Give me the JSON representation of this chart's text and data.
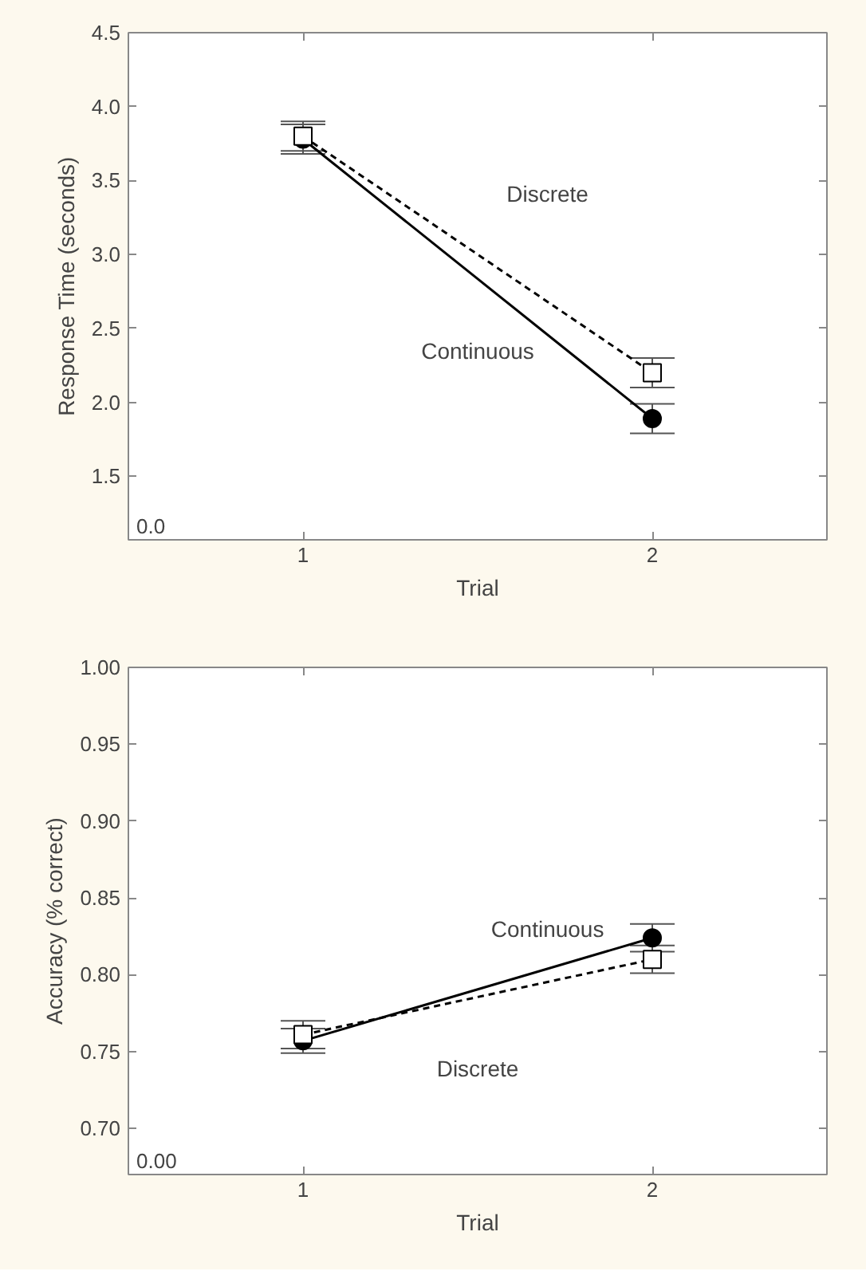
{
  "chart_data": [
    {
      "type": "line",
      "xlabel": "Trial",
      "ylabel": "Response Time (seconds)",
      "categories": [
        "1",
        "2"
      ],
      "ylim": [
        1.07,
        4.5
      ],
      "annotations": [
        "0.0"
      ],
      "yticks": [
        1.5,
        {
          "value": 2,
          "label": "2.0"
        },
        2.5,
        {
          "value": 3,
          "label": "3.0"
        },
        3.5,
        {
          "value": 4,
          "label": "4.0"
        },
        4.5
      ],
      "grid": false,
      "series": [
        {
          "name": "Continuous",
          "color": "#000000",
          "marker": "circle",
          "line_style": "solid",
          "values": [
            3.78,
            1.89
          ],
          "errors": [
            0.1,
            0.1
          ]
        },
        {
          "name": "Discrete",
          "color": "#000000",
          "marker": "square",
          "line_style": "dashed",
          "values": [
            3.8,
            2.2
          ],
          "errors": [
            0.1,
            0.1
          ]
        }
      ]
    },
    {
      "type": "line",
      "xlabel": "Trial",
      "ylabel": "Accuracy (% correct)",
      "categories": [
        "1",
        "2"
      ],
      "ylim": [
        0.67,
        1.0
      ],
      "annotations": [
        "0.00"
      ],
      "yticks": [
        {
          "value": 0.7,
          "label": "0.70"
        },
        0.75,
        {
          "value": 0.8,
          "label": "0.80"
        },
        0.85,
        {
          "value": 0.9,
          "label": "0.90"
        },
        0.95,
        {
          "value": 1.0,
          "label": "1.00"
        }
      ],
      "grid": false,
      "series": [
        {
          "name": "Continuous",
          "color": "#000000",
          "marker": "circle",
          "line_style": "solid",
          "values": [
            0.757,
            0.824
          ],
          "errors": [
            0.008,
            0.009
          ]
        },
        {
          "name": "Discrete",
          "color": "#000000",
          "marker": "square",
          "line_style": "dashed",
          "values": [
            0.761,
            0.81
          ],
          "errors": [
            0.009,
            0.009
          ]
        }
      ]
    }
  ]
}
